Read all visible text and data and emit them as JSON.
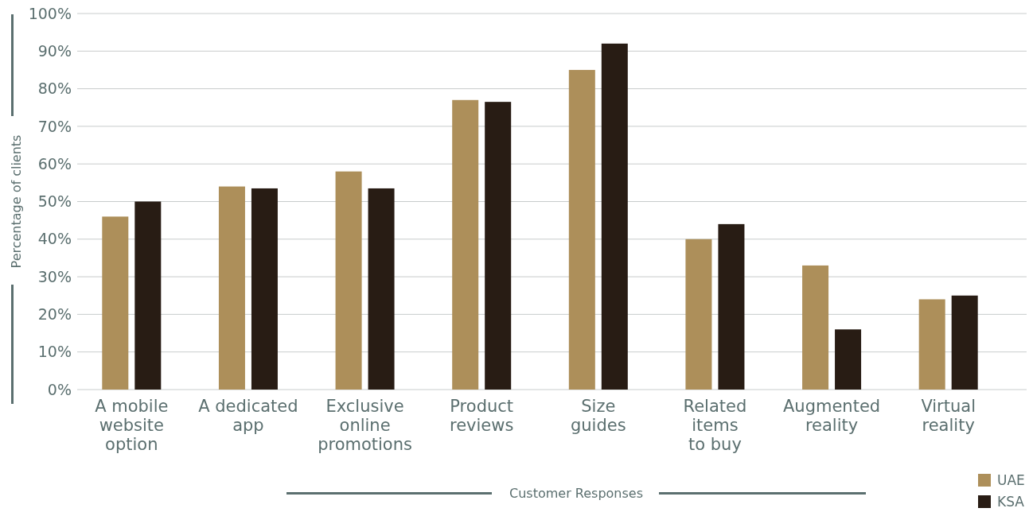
{
  "chart_data": {
    "type": "bar",
    "xlabel": "Customer Responses",
    "ylabel": "Percentage of clients",
    "categories": [
      "A mobile\nwebsite\noption",
      "A dedicated\napp",
      "Exclusive\nonline\npromotions",
      "Product\nreviews",
      "Size\nguides",
      "Related\nitems\nto buy",
      "Augmented\nreality",
      "Virtual\nreality"
    ],
    "series": [
      {
        "name": "UAE",
        "color": "#ad8f5a",
        "values": [
          46,
          54,
          58,
          77,
          85,
          40,
          33,
          24
        ]
      },
      {
        "name": "KSA",
        "color": "#281c14",
        "values": [
          50,
          53.5,
          53.5,
          76.5,
          92,
          44,
          16,
          25
        ]
      }
    ],
    "ylim": [
      0,
      100
    ],
    "yticks": [
      {
        "value": 0,
        "label": "0%"
      },
      {
        "value": 10,
        "label": "10%"
      },
      {
        "value": 20,
        "label": "20%"
      },
      {
        "value": 30,
        "label": "30%"
      },
      {
        "value": 40,
        "label": "40%"
      },
      {
        "value": 50,
        "label": "50%"
      },
      {
        "value": 60,
        "label": "60%"
      },
      {
        "value": 70,
        "label": "70%"
      },
      {
        "value": 80,
        "label": "80%"
      },
      {
        "value": 90,
        "label": "90%"
      },
      {
        "value": 100,
        "label": "100%"
      }
    ],
    "grid": "y",
    "legend": "bottom right"
  }
}
